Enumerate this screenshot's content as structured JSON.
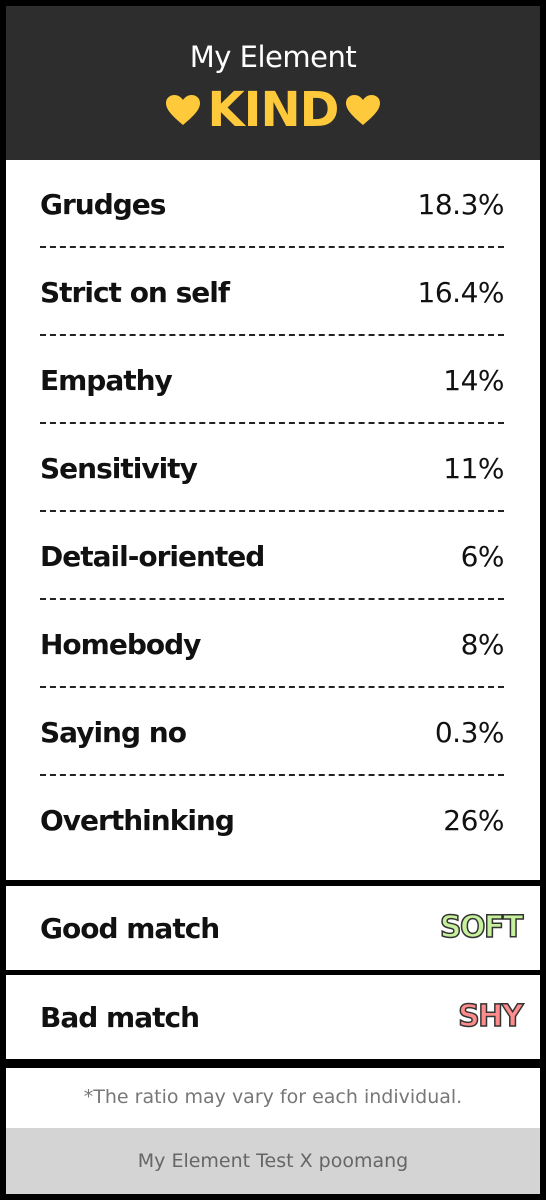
{
  "header": {
    "subtitle": "My Element",
    "title": "KIND"
  },
  "traits": [
    {
      "label": "Grudges",
      "value": "18.3%"
    },
    {
      "label": "Strict on self",
      "value": "16.4%"
    },
    {
      "label": "Empathy",
      "value": "14%"
    },
    {
      "label": "Sensitivity",
      "value": "11%"
    },
    {
      "label": "Detail-oriented",
      "value": "6%"
    },
    {
      "label": "Homebody",
      "value": "8%"
    },
    {
      "label": "Saying no",
      "value": "0.3%"
    },
    {
      "label": "Overthinking",
      "value": "26%"
    }
  ],
  "matches": [
    {
      "label": "Good match",
      "value": "SOFT"
    },
    {
      "label": "Bad match",
      "value": "SHY"
    }
  ],
  "note": "*The ratio may vary for each individual.",
  "footer": "My Element Test X poomang"
}
